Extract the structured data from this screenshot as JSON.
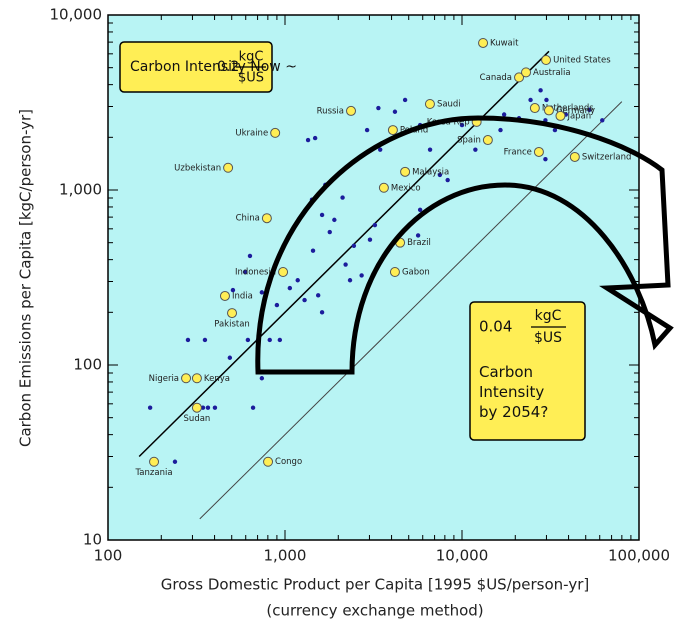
{
  "chart_data": {
    "type": "scatter",
    "x_label": "Gross Domestic Product per Capita [1995 $US/person-yr]",
    "x_label_sub": "(currency exchange method)",
    "y_label": "Carbon Emissions per Capita [kgC/person-yr]",
    "log_x": true,
    "log_y": true,
    "xlim": [
      100,
      100000
    ],
    "ylim": [
      10,
      10000
    ],
    "xticks": [
      100,
      {
        "value": 1000,
        "label": "1,000"
      },
      {
        "value": 10000,
        "label": "10,000"
      },
      {
        "value": 100000,
        "label": "100,000"
      }
    ],
    "yticks": [
      10,
      100,
      {
        "value": 1000,
        "label": "1,000"
      },
      {
        "value": 10000,
        "label": "10,000"
      }
    ],
    "background": "#b8f4f4",
    "dot_color": "#1c1c9c",
    "highlight_color": "#ffee55",
    "labeled_points": [
      {
        "label": "Kuwait",
        "x": 13150,
        "y": 6920
      },
      {
        "label": "United States",
        "x": 29850,
        "y": 5530
      },
      {
        "label": "Canada",
        "x": 21000,
        "y": 4400
      },
      {
        "label": "Australia",
        "x": 23000,
        "y": 4700
      },
      {
        "label": "Netherlands",
        "x": 25800,
        "y": 2940
      },
      {
        "label": "Germany",
        "x": 31000,
        "y": 2850
      },
      {
        "label": "Korea Rep",
        "x": 12100,
        "y": 2450
      },
      {
        "label": "Russia",
        "x": 2360,
        "y": 2830
      },
      {
        "label": "Saudi",
        "x": 6590,
        "y": 3100
      },
      {
        "label": "Poland",
        "x": 4070,
        "y": 2200
      },
      {
        "label": "Ukraine",
        "x": 880,
        "y": 2120
      },
      {
        "label": "Japan",
        "x": 36000,
        "y": 2650
      },
      {
        "label": "Spain",
        "x": 14000,
        "y": 1930
      },
      {
        "label": "France",
        "x": 27200,
        "y": 1650
      },
      {
        "label": "Switzerland",
        "x": 43400,
        "y": 1545
      },
      {
        "label": "Uzbekistan",
        "x": 477,
        "y": 1340
      },
      {
        "label": "Malaysia",
        "x": 4770,
        "y": 1270
      },
      {
        "label": "Mexico",
        "x": 3620,
        "y": 1030
      },
      {
        "label": "China",
        "x": 790,
        "y": 690
      },
      {
        "label": "Brazil",
        "x": 4470,
        "y": 500
      },
      {
        "label": "Gabon",
        "x": 4180,
        "y": 340
      },
      {
        "label": "Indonesia",
        "x": 975,
        "y": 340
      },
      {
        "label": "India",
        "x": 458,
        "y": 248
      },
      {
        "label": "Pakistan",
        "x": 502,
        "y": 198
      },
      {
        "label": "Nigeria",
        "x": 276,
        "y": 84
      },
      {
        "label": "Kenya",
        "x": 318,
        "y": 84
      },
      {
        "label": "Sudan",
        "x": 318,
        "y": 57
      },
      {
        "label": "Tanzania",
        "x": 182,
        "y": 28
      },
      {
        "label": "Congo",
        "x": 802,
        "y": 28
      }
    ],
    "other_points": {
      "x": [
        173,
        239,
        344,
        367,
        402,
        660,
        283,
        353,
        488,
        617,
        704,
        820,
        935,
        740,
        508,
        634,
        595,
        740,
        900,
        1065,
        1180,
        1290,
        1440,
        1540,
        1620,
        1790,
        1900,
        1690,
        1620,
        1420,
        1350,
        1480,
        2200,
        2330,
        2115,
        2450,
        2710,
        3020,
        3220,
        3450,
        2910,
        3370,
        4180,
        4770,
        5800,
        5650,
        5800,
        6600,
        7500,
        8300,
        10000,
        11900,
        16500,
        17300,
        21000,
        24400,
        27800,
        29600,
        33500,
        38600,
        29600,
        42300,
        52400,
        62000,
        30000
      ],
      "y": [
        57,
        28,
        57,
        57,
        57,
        57,
        139,
        139,
        110,
        139,
        139,
        139,
        139,
        84,
        268,
        420,
        340,
        260,
        220,
        275,
        305,
        235,
        450,
        250,
        200,
        575,
        675,
        1070,
        720,
        880,
        1930,
        1980,
        375,
        305,
        905,
        480,
        325,
        520,
        630,
        1700,
        2200,
        2940,
        2800,
        3270,
        2350,
        550,
        770,
        1700,
        1220,
        1140,
        2350,
        1700,
        2200,
        2700,
        2570,
        3270,
        3710,
        2500,
        2200,
        2700,
        1500,
        2200,
        2870,
        2500,
        3270
      ]
    },
    "annotations": [
      {
        "text": "Carbon Intensity Now ~",
        "intensity": 0.2,
        "unit_top": "kgC",
        "unit_bottom": "$US",
        "x_range": [
          150,
          31000
        ]
      },
      {
        "text": "Carbon Intensity by 2054?",
        "intensity": 0.04,
        "unit_top": "kgC",
        "unit_bottom": "$US",
        "x_range": [
          330,
          80000
        ]
      }
    ]
  }
}
